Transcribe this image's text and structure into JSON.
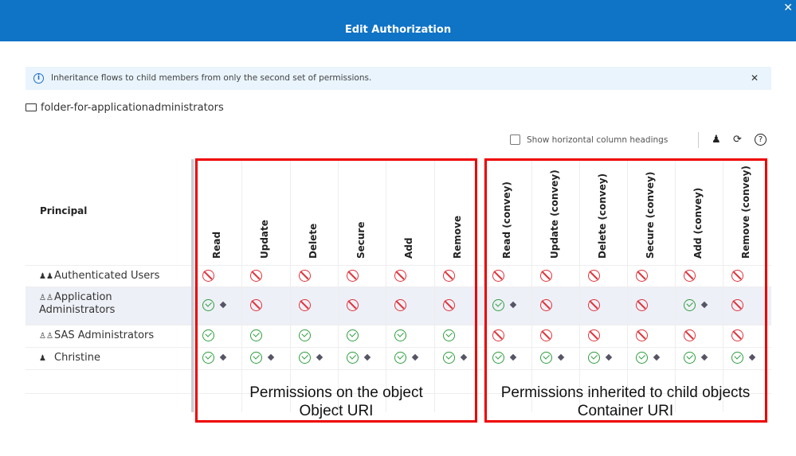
{
  "dialog": {
    "title": "Edit Authorization",
    "close_icon": "close-icon"
  },
  "info": {
    "text": "Inheritance flows to child members from only the second set of permissions.",
    "icon": "info-icon"
  },
  "folder": {
    "name": "folder-for-applicationadministrators",
    "icon": "folder-icon"
  },
  "toolbar": {
    "checkbox_label": "Show horizontal column headings",
    "checked": false,
    "icons": [
      "add-user-icon",
      "reset-icon",
      "help-icon"
    ]
  },
  "table": {
    "principal_header": "Principal",
    "columns": [
      "Read",
      "Update",
      "Delete",
      "Secure",
      "Add",
      "Remove",
      "Read (convey)",
      "Update (convey)",
      "Delete (convey)",
      "Secure (convey)",
      "Add (convey)",
      "Remove (convey)"
    ],
    "rows": [
      {
        "name": "Authenticated Users",
        "type": "group",
        "cells": [
          "deny",
          "deny",
          "deny",
          "deny",
          "deny",
          "deny",
          "deny",
          "deny",
          "deny",
          "deny",
          "deny",
          "deny"
        ]
      },
      {
        "name": "Application Administrators",
        "type": "custom-group",
        "cells": [
          "grant-direct",
          "deny",
          "deny",
          "deny",
          "deny",
          "deny",
          "grant-direct",
          "deny",
          "deny",
          "deny",
          "grant-direct",
          "deny"
        ]
      },
      {
        "name": "SAS Administrators",
        "type": "custom-group",
        "cells": [
          "grant",
          "grant",
          "grant",
          "grant",
          "grant",
          "grant",
          "deny",
          "deny",
          "deny",
          "deny",
          "deny",
          "deny"
        ]
      },
      {
        "name": "Christine",
        "type": "user",
        "cells": [
          "grant-direct",
          "grant-direct",
          "grant-direct",
          "grant-direct",
          "grant-direct",
          "grant-direct",
          "grant-direct",
          "grant-direct",
          "grant-direct",
          "grant-direct",
          "grant-direct",
          "grant-direct"
        ]
      }
    ]
  },
  "annotations": [
    {
      "line1": "Permissions on the object",
      "line2": "Object URI"
    },
    {
      "line1": "Permissions inherited to child objects",
      "line2": "Container URI"
    }
  ],
  "colors": {
    "header": "#0f73c6",
    "deny": "#e0333a",
    "grant": "#2e9e3e",
    "annotation_box": "#ee0000"
  }
}
